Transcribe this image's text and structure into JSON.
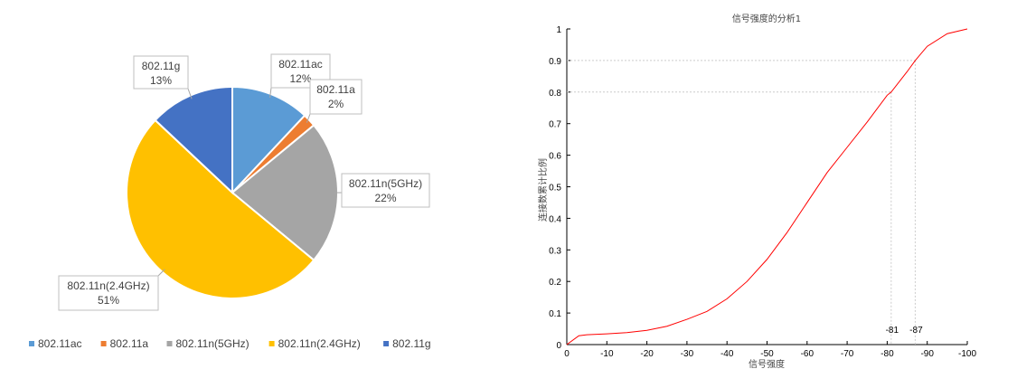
{
  "chart_data": [
    {
      "type": "pie",
      "slices": [
        {
          "label": "802.11ac",
          "value": 12,
          "color": "#5B9BD5"
        },
        {
          "label": "802.11a",
          "value": 2,
          "color": "#ED7D31"
        },
        {
          "label": "802.11n(5GHz)",
          "value": 22,
          "color": "#A5A5A5"
        },
        {
          "label": "802.11n(2.4GHz)",
          "value": 51,
          "color": "#FFC000"
        },
        {
          "label": "802.11g",
          "value": 13,
          "color": "#4472C4"
        }
      ],
      "legend": "bottom"
    },
    {
      "type": "line",
      "title": "信号强度的分析1",
      "xlabel": "信号强度",
      "ylabel": "连接数累计比例",
      "xlim": [
        0,
        -100
      ],
      "ylim": [
        0,
        1
      ],
      "xticks": [
        "0",
        "-10",
        "-20",
        "-30",
        "-40",
        "-50",
        "-60",
        "-70",
        "-80",
        "-90",
        "-100"
      ],
      "yticks": [
        "0",
        "0.1",
        "0.2",
        "0.3",
        "0.4",
        "0.5",
        "0.6",
        "0.7",
        "0.8",
        "0.9",
        "1"
      ],
      "series": [
        {
          "color": "#FF0000",
          "x": [
            0,
            -3,
            -5,
            -10,
            -15,
            -20,
            -25,
            -30,
            -35,
            -40,
            -45,
            -50,
            -55,
            -60,
            -65,
            -70,
            -75,
            -80,
            -81,
            -85,
            -87,
            -90,
            -95,
            -100
          ],
          "y": [
            0,
            0.028,
            0.031,
            0.034,
            0.038,
            0.045,
            0.058,
            0.08,
            0.105,
            0.145,
            0.2,
            0.27,
            0.355,
            0.45,
            0.545,
            0.625,
            0.705,
            0.79,
            0.8,
            0.865,
            0.9,
            0.945,
            0.985,
            1
          ]
        }
      ],
      "annotations": [
        {
          "x": -81,
          "y": 0.8,
          "label": "-81"
        },
        {
          "x": -87,
          "y": 0.9,
          "label": "-87"
        }
      ]
    }
  ]
}
